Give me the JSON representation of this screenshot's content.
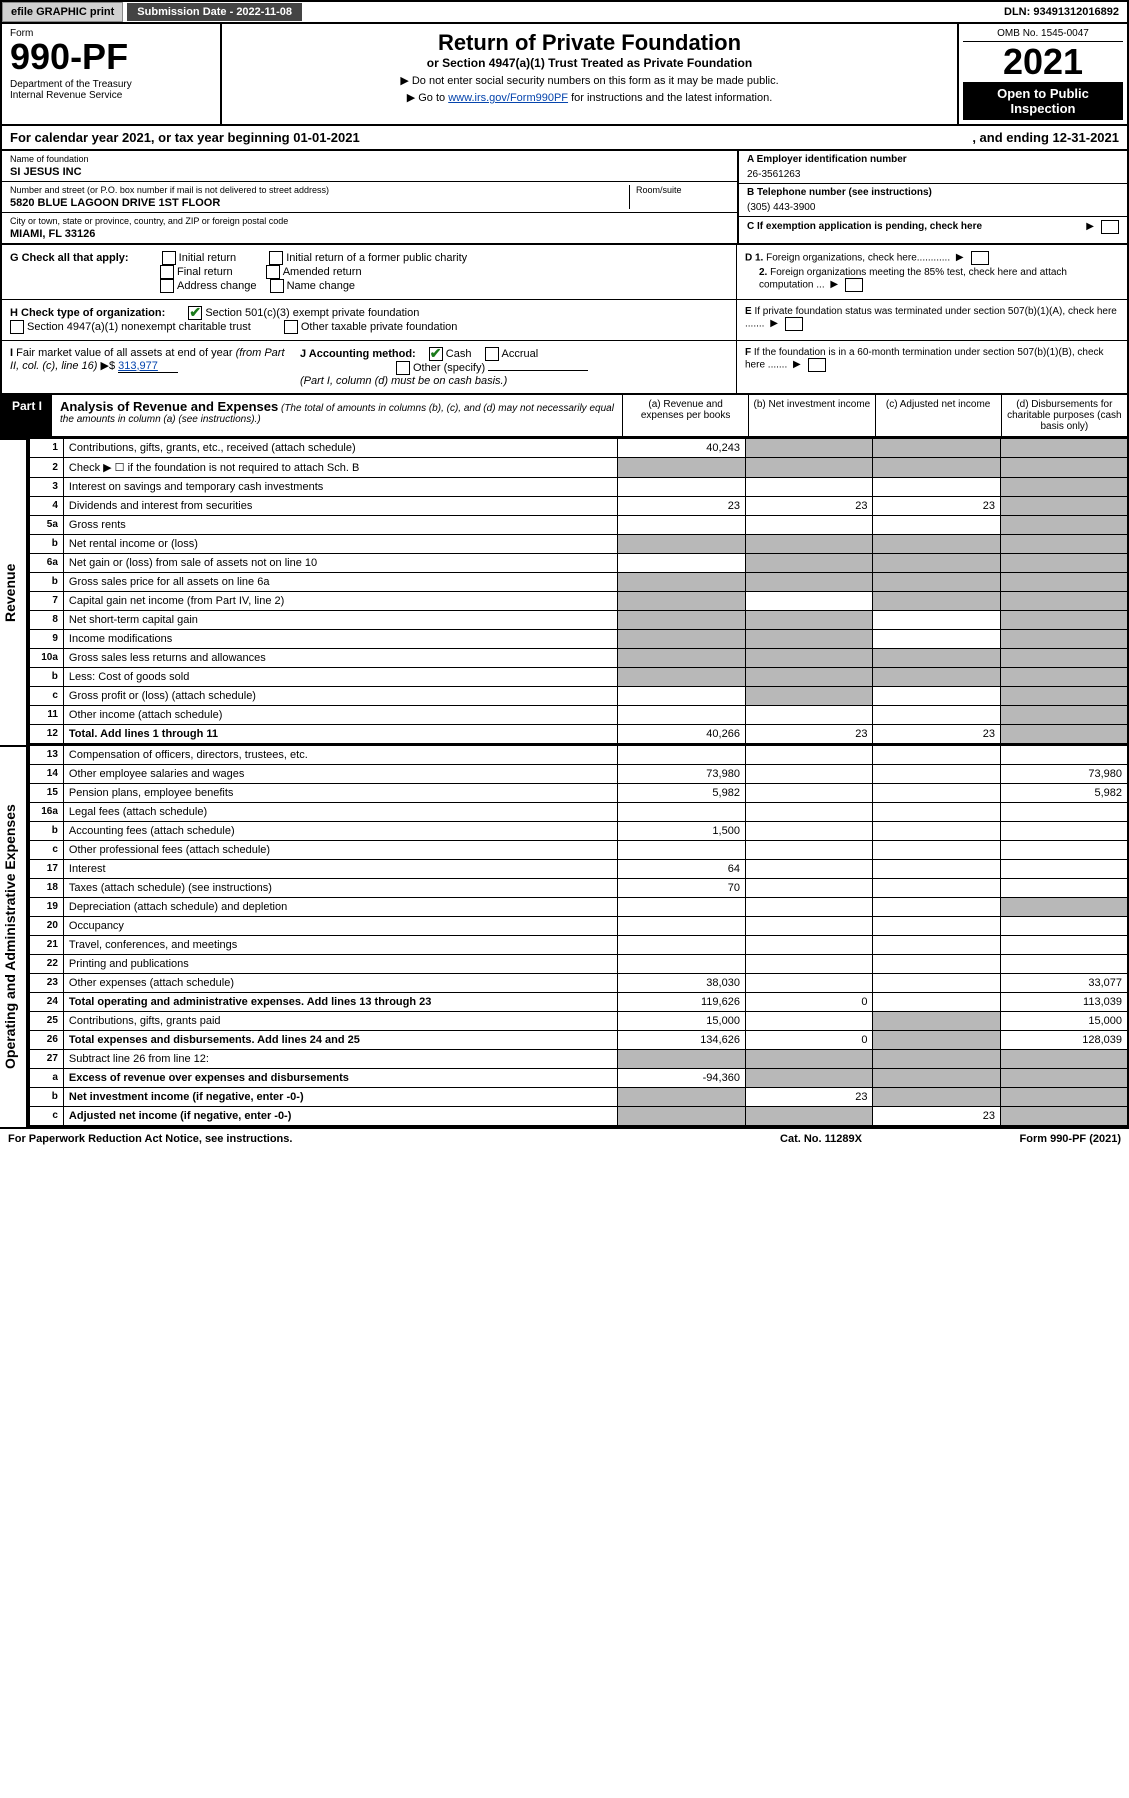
{
  "topbar": {
    "efile_btn": "efile GRAPHIC print",
    "sub_date_label": "Submission Date - 2022-11-08",
    "dln": "DLN: 93491312016892"
  },
  "header": {
    "form_label": "Form",
    "form_number": "990-PF",
    "dept": "Department of the Treasury\nInternal Revenue Service",
    "title": "Return of Private Foundation",
    "subtitle": "or Section 4947(a)(1) Trust Treated as Private Foundation",
    "instr1": "▶ Do not enter social security numbers on this form as it may be made public.",
    "instr2": "▶ Go to ",
    "instr2_link": "www.irs.gov/Form990PF",
    "instr2_suffix": " for instructions and the latest information.",
    "omb": "OMB No. 1545-0047",
    "year": "2021",
    "open_pub": "Open to Public\nInspection"
  },
  "cal_year": {
    "text": "For calendar year 2021, or tax year beginning 01-01-2021",
    "ending": ", and ending 12-31-2021"
  },
  "entity": {
    "name_lbl": "Name of foundation",
    "name": "SI JESUS INC",
    "addr_lbl": "Number and street (or P.O. box number if mail is not delivered to street address)",
    "addr": "5820 BLUE LAGOON DRIVE 1ST FLOOR",
    "room_lbl": "Room/suite",
    "city_lbl": "City or town, state or province, country, and ZIP or foreign postal code",
    "city": "MIAMI, FL  33126",
    "a_lbl": "A Employer identification number",
    "a_val": "26-3561263",
    "b_lbl": "B Telephone number (see instructions)",
    "b_val": "(305) 443-3900",
    "c_lbl": "C If exemption application is pending, check here"
  },
  "checks": {
    "g_lbl": "G Check all that apply:",
    "g_opts": [
      "Initial return",
      "Initial return of a former public charity",
      "Final return",
      "Amended return",
      "Address change",
      "Name change"
    ],
    "h_lbl": "H Check type of organization:",
    "h1": "Section 501(c)(3) exempt private foundation",
    "h2": "Section 4947(a)(1) nonexempt charitable trust",
    "h3": "Other taxable private foundation",
    "i_lbl": "I Fair market value of all assets at end of year (from Part II, col. (c), line 16) ▶$ ",
    "i_val": "313,977",
    "j_lbl": "J Accounting method:",
    "j_opts": [
      "Cash",
      "Accrual",
      "Other (specify)"
    ],
    "j_note": "(Part I, column (d) must be on cash basis.)",
    "d1": "D 1. Foreign organizations, check here",
    "d2": "2. Foreign organizations meeting the 85% test, check here and attach computation ...",
    "e": "E  If private foundation status was terminated under section 507(b)(1)(A), check here .......",
    "f": "F  If the foundation is in a 60-month termination under section 507(b)(1)(B), check here ......."
  },
  "part1": {
    "label": "Part I",
    "title": "Analysis of Revenue and Expenses",
    "desc": " (The total of amounts in columns (b), (c), and (d) may not necessarily equal the amounts in column (a) (see instructions).)",
    "col_a": "(a)   Revenue and expenses per books",
    "col_b": "(b)   Net investment income",
    "col_c": "(c)   Adjusted net income",
    "col_d": "(d)  Disbursements for charitable purposes (cash basis only)"
  },
  "sidelabels": {
    "revenue": "Revenue",
    "expenses": "Operating and Administrative Expenses"
  },
  "lines": {
    "1": {
      "n": "1",
      "lbl": "Contributions, gifts, grants, etc., received (attach schedule)",
      "a": "40,243",
      "b": "",
      "c": "",
      "d": "",
      "grey": [
        "b",
        "c",
        "d"
      ]
    },
    "2": {
      "n": "2",
      "lbl": "Check ▶ ☐ if the foundation is not required to attach Sch. B",
      "grey": [
        "a",
        "b",
        "c",
        "d"
      ]
    },
    "3": {
      "n": "3",
      "lbl": "Interest on savings and temporary cash investments",
      "a": "",
      "b": "",
      "c": "",
      "d": "",
      "grey": [
        "d"
      ]
    },
    "4": {
      "n": "4",
      "lbl": "Dividends and interest from securities",
      "a": "23",
      "b": "23",
      "c": "23",
      "d": "",
      "grey": [
        "d"
      ]
    },
    "5a": {
      "n": "5a",
      "lbl": "Gross rents",
      "grey": [
        "d"
      ]
    },
    "5b": {
      "n": "b",
      "lbl": "Net rental income or (loss)",
      "grey": [
        "a",
        "b",
        "c",
        "d"
      ]
    },
    "6a": {
      "n": "6a",
      "lbl": "Net gain or (loss) from sale of assets not on line 10",
      "grey": [
        "b",
        "c",
        "d"
      ]
    },
    "6b": {
      "n": "b",
      "lbl": "Gross sales price for all assets on line 6a",
      "grey": [
        "a",
        "b",
        "c",
        "d"
      ]
    },
    "7": {
      "n": "7",
      "lbl": "Capital gain net income (from Part IV, line 2)",
      "grey": [
        "a",
        "c",
        "d"
      ]
    },
    "8": {
      "n": "8",
      "lbl": "Net short-term capital gain",
      "grey": [
        "a",
        "b",
        "d"
      ]
    },
    "9": {
      "n": "9",
      "lbl": "Income modifications",
      "grey": [
        "a",
        "b",
        "d"
      ]
    },
    "10a": {
      "n": "10a",
      "lbl": "Gross sales less returns and allowances",
      "grey": [
        "a",
        "b",
        "c",
        "d"
      ]
    },
    "10b": {
      "n": "b",
      "lbl": "Less: Cost of goods sold",
      "grey": [
        "a",
        "b",
        "c",
        "d"
      ]
    },
    "10c": {
      "n": "c",
      "lbl": "Gross profit or (loss) (attach schedule)",
      "grey": [
        "b",
        "d"
      ]
    },
    "11": {
      "n": "11",
      "lbl": "Other income (attach schedule)",
      "grey": [
        "d"
      ]
    },
    "12": {
      "n": "12",
      "lbl": "Total. Add lines 1 through 11",
      "a": "40,266",
      "b": "23",
      "c": "23",
      "d": "",
      "bold": true,
      "grey": [
        "d"
      ]
    },
    "13": {
      "n": "13",
      "lbl": "Compensation of officers, directors, trustees, etc."
    },
    "14": {
      "n": "14",
      "lbl": "Other employee salaries and wages",
      "a": "73,980",
      "d": "73,980"
    },
    "15": {
      "n": "15",
      "lbl": "Pension plans, employee benefits",
      "a": "5,982",
      "d": "5,982"
    },
    "16a": {
      "n": "16a",
      "lbl": "Legal fees (attach schedule)"
    },
    "16b": {
      "n": "b",
      "lbl": "Accounting fees (attach schedule)",
      "a": "1,500"
    },
    "16c": {
      "n": "c",
      "lbl": "Other professional fees (attach schedule)"
    },
    "17": {
      "n": "17",
      "lbl": "Interest",
      "a": "64"
    },
    "18": {
      "n": "18",
      "lbl": "Taxes (attach schedule) (see instructions)",
      "a": "70"
    },
    "19": {
      "n": "19",
      "lbl": "Depreciation (attach schedule) and depletion",
      "grey": [
        "d"
      ]
    },
    "20": {
      "n": "20",
      "lbl": "Occupancy"
    },
    "21": {
      "n": "21",
      "lbl": "Travel, conferences, and meetings"
    },
    "22": {
      "n": "22",
      "lbl": "Printing and publications"
    },
    "23": {
      "n": "23",
      "lbl": "Other expenses (attach schedule)",
      "a": "38,030",
      "d": "33,077"
    },
    "24": {
      "n": "24",
      "lbl": "Total operating and administrative expenses. Add lines 13 through 23",
      "a": "119,626",
      "b": "0",
      "d": "113,039",
      "bold": true
    },
    "25": {
      "n": "25",
      "lbl": "Contributions, gifts, grants paid",
      "a": "15,000",
      "d": "15,000",
      "grey": [
        "c"
      ]
    },
    "26": {
      "n": "26",
      "lbl": "Total expenses and disbursements. Add lines 24 and 25",
      "a": "134,626",
      "b": "0",
      "d": "128,039",
      "bold": true,
      "grey": [
        "c"
      ]
    },
    "27": {
      "n": "27",
      "lbl": "Subtract line 26 from line 12:",
      "grey": [
        "a",
        "b",
        "c",
        "d"
      ]
    },
    "27a": {
      "n": "a",
      "lbl": "Excess of revenue over expenses and disbursements",
      "a": "-94,360",
      "bold": true,
      "grey": [
        "b",
        "c",
        "d"
      ]
    },
    "27b": {
      "n": "b",
      "lbl": "Net investment income (if negative, enter -0-)",
      "b": "23",
      "bold": true,
      "grey": [
        "a",
        "c",
        "d"
      ]
    },
    "27c": {
      "n": "c",
      "lbl": "Adjusted net income (if negative, enter -0-)",
      "c": "23",
      "bold": true,
      "grey": [
        "a",
        "b",
        "d"
      ]
    }
  },
  "line_order": [
    "1",
    "2",
    "3",
    "4",
    "5a",
    "5b",
    "6a",
    "6b",
    "7",
    "8",
    "9",
    "10a",
    "10b",
    "10c",
    "11",
    "12",
    "13",
    "14",
    "15",
    "16a",
    "16b",
    "16c",
    "17",
    "18",
    "19",
    "20",
    "21",
    "22",
    "23",
    "24",
    "25",
    "26",
    "27",
    "27a",
    "27b",
    "27c"
  ],
  "footer": {
    "left": "For Paperwork Reduction Act Notice, see instructions.",
    "mid": "Cat. No. 11289X",
    "right": "Form 990-PF (2021)"
  }
}
